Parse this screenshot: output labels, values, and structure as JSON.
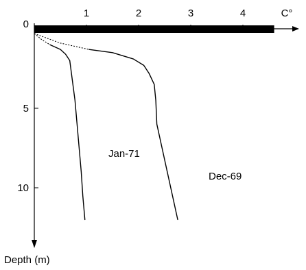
{
  "chart_data": {
    "type": "line",
    "x_axis": {
      "label": "C°",
      "ticks": [
        1,
        2,
        3,
        4
      ],
      "range": [
        0,
        4.6
      ],
      "position": "top"
    },
    "y_axis": {
      "label": "Depth (m)",
      "ticks": [
        0,
        5,
        10
      ],
      "range": [
        0,
        13
      ],
      "inverted": true
    },
    "top_bar": {
      "from_x": 0,
      "to_x": 4.6,
      "depth": 0
    },
    "series": [
      {
        "name": "Jan-71",
        "dotted_points": [
          [
            0,
            0.3
          ],
          [
            0.15,
            0.7
          ],
          [
            0.3,
            1.0
          ]
        ],
        "points": [
          [
            0.3,
            1.0
          ],
          [
            0.5,
            1.3
          ],
          [
            0.6,
            1.6
          ],
          [
            0.68,
            2.0
          ],
          [
            0.72,
            3.0
          ],
          [
            0.78,
            4.5
          ],
          [
            0.82,
            6.0
          ],
          [
            0.86,
            7.5
          ],
          [
            0.9,
            9.0
          ],
          [
            0.93,
            10.5
          ],
          [
            0.97,
            12.0
          ]
        ]
      },
      {
        "name": "Dec-69",
        "dotted_points": [
          [
            0,
            0.3
          ],
          [
            0.5,
            0.9
          ],
          [
            1.05,
            1.3
          ]
        ],
        "points": [
          [
            1.05,
            1.3
          ],
          [
            1.5,
            1.5
          ],
          [
            1.9,
            1.9
          ],
          [
            2.1,
            2.3
          ],
          [
            2.2,
            2.8
          ],
          [
            2.3,
            3.5
          ],
          [
            2.33,
            4.5
          ],
          [
            2.35,
            6.0
          ],
          [
            2.45,
            7.5
          ],
          [
            2.55,
            9.0
          ],
          [
            2.65,
            10.5
          ],
          [
            2.75,
            12.0
          ]
        ]
      }
    ],
    "grid": false,
    "legend": "none"
  }
}
